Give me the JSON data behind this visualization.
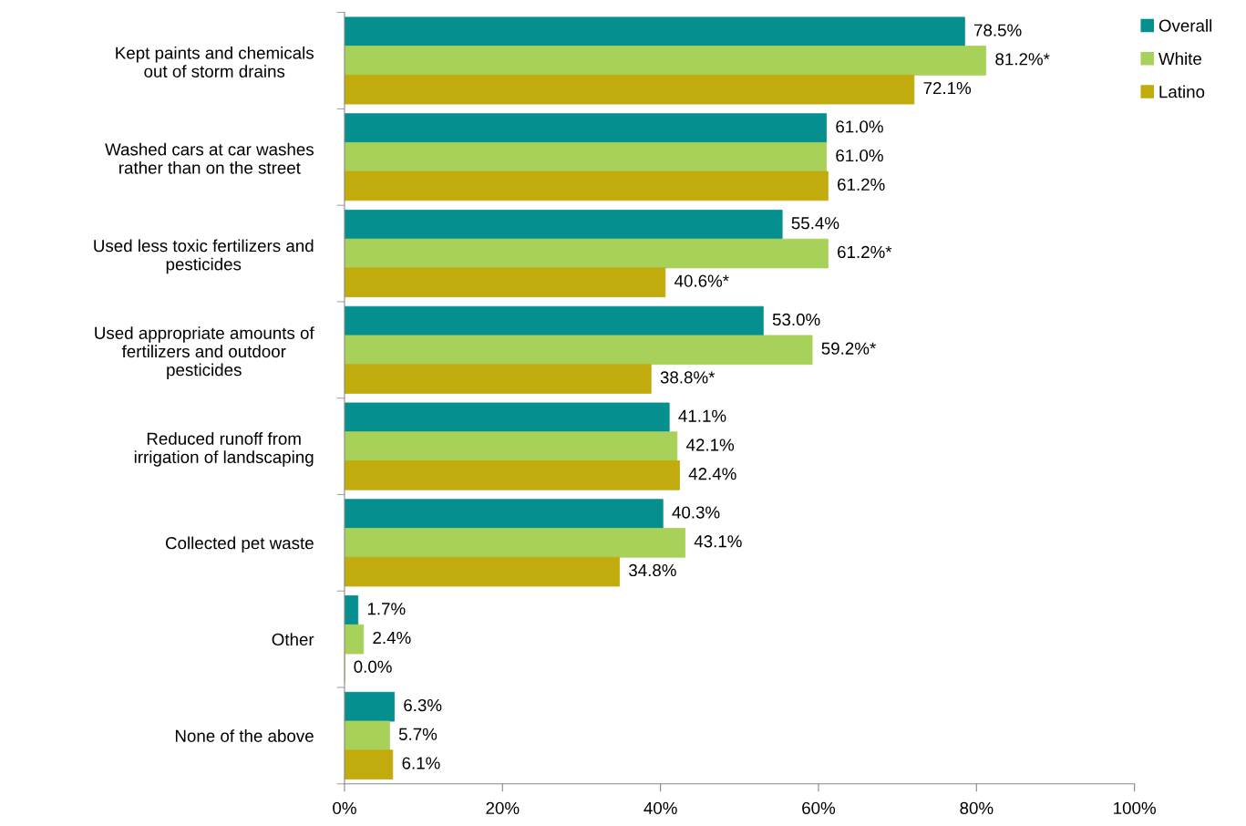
{
  "chart_data": {
    "type": "bar",
    "orientation": "horizontal",
    "categories": [
      "Kept paints and chemicals\nout of storm drains",
      "Washed cars at car washes\nrather than on the street",
      "Used less toxic fertilizers and\npesticides",
      "Used appropriate amounts of\nfertilizers and outdoor\npesticides",
      "Reduced runoff from\nirrigation of landscaping",
      "Collected pet waste",
      "Other",
      "None of the above"
    ],
    "series": [
      {
        "name": "Overall",
        "color": "#058f8f",
        "values": [
          78.5,
          61.0,
          55.4,
          53.0,
          41.1,
          40.3,
          1.7,
          6.3
        ],
        "value_labels": [
          "78.5%",
          "61.0%",
          "55.4%",
          "53.0%",
          "41.1%",
          "40.3%",
          "1.7%",
          "6.3%"
        ]
      },
      {
        "name": "White",
        "color": "#a8d15a",
        "values": [
          81.2,
          61.0,
          61.2,
          59.2,
          42.1,
          43.1,
          2.4,
          5.7
        ],
        "value_labels": [
          "81.2%*",
          "61.0%",
          "61.2%*",
          "59.2%*",
          "42.1%",
          "43.1%",
          "2.4%",
          "5.7%"
        ]
      },
      {
        "name": "Latino",
        "color": "#c1ab0d",
        "values": [
          72.1,
          61.2,
          40.6,
          38.8,
          42.4,
          34.8,
          0.0,
          6.1
        ],
        "value_labels": [
          "72.1%",
          "61.2%",
          "40.6%*",
          "38.8%*",
          "42.4%",
          "34.8%",
          "0.0%",
          "6.1%"
        ]
      }
    ],
    "xlim": [
      0,
      100
    ],
    "xticks": [
      {
        "value": 0,
        "label": "0%"
      },
      {
        "value": 20,
        "label": "20%"
      },
      {
        "value": 40,
        "label": "40%"
      },
      {
        "value": 60,
        "label": "60%"
      },
      {
        "value": 80,
        "label": "80%"
      },
      {
        "value": 100,
        "label": "100%"
      }
    ],
    "grid": false,
    "legend": "top right"
  }
}
